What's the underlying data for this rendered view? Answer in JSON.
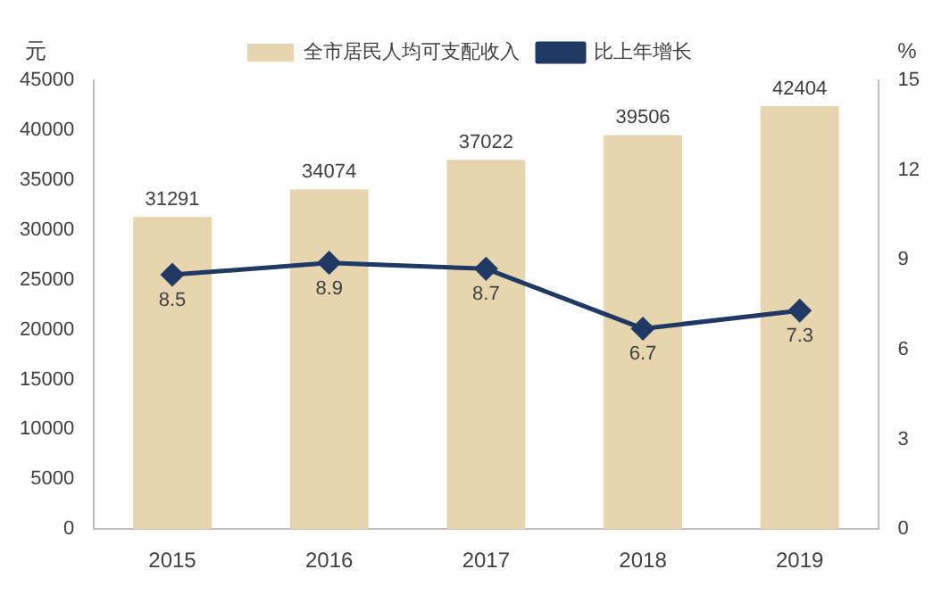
{
  "chart_data": {
    "type": "bar",
    "categories": [
      "2015",
      "2016",
      "2017",
      "2018",
      "2019"
    ],
    "ylabel": "元",
    "y2label": "%",
    "series": [
      {
        "name": "全市居民人均可支配收入",
        "color": "#e6d5ae",
        "values": [
          31291,
          34074,
          37022,
          39506,
          42404
        ]
      },
      {
        "name": "比上年增长",
        "type": "line",
        "axis": "y2",
        "color": "#1f3864",
        "values": [
          8.5,
          8.9,
          8.7,
          6.7,
          7.3
        ]
      }
    ],
    "ylim": [
      0,
      45000
    ],
    "yticks": [
      0,
      5000,
      10000,
      15000,
      20000,
      25000,
      30000,
      35000,
      40000,
      45000
    ],
    "y2lim": [
      0,
      15
    ],
    "y2ticks": [
      0,
      3,
      6,
      9,
      12,
      15
    ],
    "data_labels": true,
    "legend": "top",
    "marker": "diamond",
    "line_style": "solid",
    "grid": false
  }
}
